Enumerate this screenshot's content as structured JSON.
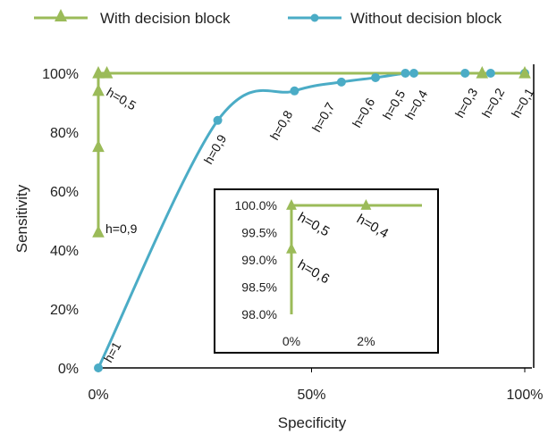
{
  "chart_data": [
    {
      "type": "line",
      "xlabel": "Specificity",
      "ylabel": "Sensitivity",
      "xlim": [
        0,
        100
      ],
      "ylim": [
        0,
        100
      ],
      "x_ticks": [
        "0%",
        "50%",
        "100%"
      ],
      "y_ticks": [
        "0%",
        "20%",
        "40%",
        "60%",
        "80%",
        "100%"
      ],
      "grid": false,
      "legend_position": "top",
      "series": [
        {
          "name": "With decision block",
          "color": "#9bbb59",
          "marker": "triangle",
          "points": [
            {
              "x": 0,
              "y": 46,
              "label": "h=0,9"
            },
            {
              "x": 0,
              "y": 75,
              "label": ""
            },
            {
              "x": 0,
              "y": 94,
              "label": ""
            },
            {
              "x": 0,
              "y": 99.2,
              "label": "h=0,6"
            },
            {
              "x": 0,
              "y": 100,
              "label": "h=0,5"
            },
            {
              "x": 2,
              "y": 100,
              "label": "h=0,4"
            },
            {
              "x": 90,
              "y": 100,
              "label": ""
            },
            {
              "x": 100,
              "y": 100,
              "label": ""
            }
          ]
        },
        {
          "name": "Without decision block",
          "color": "#4bacc6",
          "marker": "circle",
          "points": [
            {
              "x": 0,
              "y": 0,
              "label": "h=1"
            },
            {
              "x": 28,
              "y": 84,
              "label": "h=0,9"
            },
            {
              "x": 46,
              "y": 94,
              "label": "h=0,8"
            },
            {
              "x": 57,
              "y": 97,
              "label": "h=0,7"
            },
            {
              "x": 65,
              "y": 98.5,
              "label": "h=0,6"
            },
            {
              "x": 72,
              "y": 100,
              "label": "h=0,5"
            },
            {
              "x": 74,
              "y": 100,
              "label": "h=0,4"
            },
            {
              "x": 86,
              "y": 100,
              "label": "h=0,3"
            },
            {
              "x": 92,
              "y": 100,
              "label": "h=0,2"
            },
            {
              "x": 100,
              "y": 100,
              "label": "h=0,1"
            }
          ]
        }
      ]
    },
    {
      "type": "line",
      "xlim": [
        0,
        3.5
      ],
      "ylim": [
        98,
        100
      ],
      "x_ticks": [
        "0%",
        "2%"
      ],
      "y_ticks": [
        "98.0%",
        "98.5%",
        "99.0%",
        "99.5%",
        "100.0%"
      ],
      "grid": false,
      "series": [
        {
          "name": "With decision block",
          "color": "#9bbb59",
          "marker": "triangle",
          "points": [
            {
              "x": 0,
              "y": 98.0
            },
            {
              "x": 0,
              "y": 99.2
            },
            {
              "x": 0,
              "y": 100.0
            },
            {
              "x": 2,
              "y": 100.0
            },
            {
              "x": 3.5,
              "y": 100.0
            }
          ]
        }
      ]
    }
  ],
  "inset_annotations": [
    {
      "x": 0,
      "y": 99.95,
      "label": "h=0,5"
    },
    {
      "x": 2,
      "y": 99.95,
      "label": "h=0,4"
    },
    {
      "x": 0,
      "y": 99.2,
      "label": "h=0,6"
    }
  ]
}
